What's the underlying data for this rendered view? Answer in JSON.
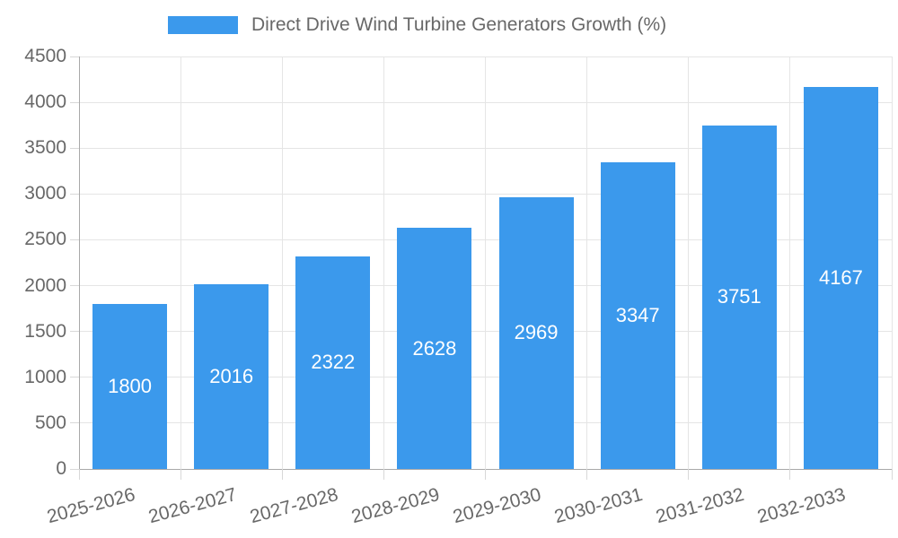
{
  "legend": {
    "label": "Direct Drive Wind Turbine Generators Growth (%)"
  },
  "chart_data": {
    "type": "bar",
    "title": "",
    "categories": [
      "2025-2026",
      "2026-2027",
      "2027-2028",
      "2028-2029",
      "2029-2030",
      "2030-2031",
      "2031-2032",
      "2032-2033"
    ],
    "series": [
      {
        "name": "Direct Drive Wind Turbine Generators Growth (%)",
        "values": [
          1800,
          2016,
          2322,
          2628,
          2969,
          3347,
          3751,
          4167
        ]
      }
    ],
    "xlabel": "",
    "ylabel": "",
    "ylim": [
      0,
      4500
    ],
    "yticks": [
      0,
      500,
      1000,
      1500,
      2000,
      2500,
      3000,
      3500,
      4000,
      4500
    ],
    "grid": true,
    "legend_position": "top-center",
    "x_label_rotation_deg": -15,
    "value_label_position": "inside-center",
    "colors": {
      "bar": "#3B99EC",
      "gridline": "#E5E5E5",
      "axis_line": "#A9A9A9",
      "tick": "#D8D8D8",
      "axis_text": "#686868",
      "value_label": "#FFFFFF",
      "background": "#FFFFFF"
    }
  }
}
